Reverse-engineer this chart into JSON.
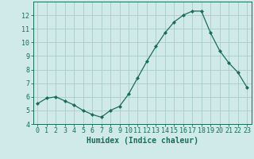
{
  "x": [
    0,
    1,
    2,
    3,
    4,
    5,
    6,
    7,
    8,
    9,
    10,
    11,
    12,
    13,
    14,
    15,
    16,
    17,
    18,
    19,
    20,
    21,
    22,
    23
  ],
  "y": [
    5.5,
    5.9,
    6.0,
    5.7,
    5.4,
    5.0,
    4.7,
    4.5,
    5.0,
    5.3,
    6.2,
    7.4,
    8.6,
    9.7,
    10.7,
    11.5,
    12.0,
    12.3,
    12.3,
    10.7,
    9.4,
    8.5,
    7.8,
    6.7
  ],
  "line_color": "#1a6b5a",
  "marker": "D",
  "marker_size": 2.0,
  "bg_color": "#d0eaea",
  "grid_color": "#aacccc",
  "xlabel": "Humidex (Indice chaleur)",
  "xlabel_fontsize": 7,
  "tick_fontsize": 6,
  "ylim": [
    4,
    13
  ],
  "xlim": [
    -0.5,
    23.5
  ],
  "yticks": [
    4,
    5,
    6,
    7,
    8,
    9,
    10,
    11,
    12
  ],
  "xticks": [
    0,
    1,
    2,
    3,
    4,
    5,
    6,
    7,
    8,
    9,
    10,
    11,
    12,
    13,
    14,
    15,
    16,
    17,
    18,
    19,
    20,
    21,
    22,
    23
  ]
}
